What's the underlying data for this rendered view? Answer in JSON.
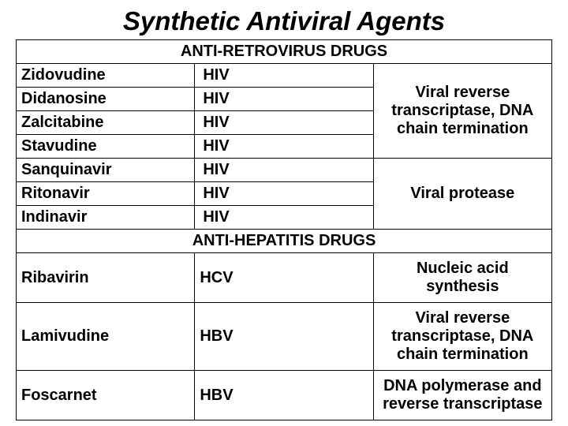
{
  "title": "Synthetic Antiviral Agents",
  "section1": {
    "header": "ANTI-RETROVIRUS DRUGS"
  },
  "retro": {
    "drugs": [
      {
        "name": "Zidovudine",
        "virus": "HIV"
      },
      {
        "name": "Didanosine",
        "virus": "HIV"
      },
      {
        "name": "Zalcitabine",
        "virus": "HIV"
      },
      {
        "name": "Stavudine",
        "virus": "HIV"
      },
      {
        "name": "Sanquinavir",
        "virus": "HIV"
      },
      {
        "name": "Ritonavir",
        "virus": "HIV"
      },
      {
        "name": "Indinavir",
        "virus": "HIV"
      }
    ],
    "mech1": "Viral reverse transcriptase, DNA chain termination",
    "mech2": "Viral protease"
  },
  "section2": {
    "header": "ANTI-HEPATITIS DRUGS"
  },
  "hep": {
    "rows": [
      {
        "name": "Ribavirin",
        "virus": "HCV",
        "mech": "Nucleic acid synthesis"
      },
      {
        "name": "Lamivudine",
        "virus": "HBV",
        "mech": "Viral reverse transcriptase, DNA chain termination"
      },
      {
        "name": "Foscarnet",
        "virus": "HBV",
        "mech": "DNA polymerase and reverse transcriptase"
      }
    ]
  },
  "style": {
    "font_family": "Arial",
    "title_fontsize": 33,
    "body_fontsize": 20,
    "text_color": "#000000",
    "background_color": "#ffffff",
    "border_color": "#000000"
  }
}
